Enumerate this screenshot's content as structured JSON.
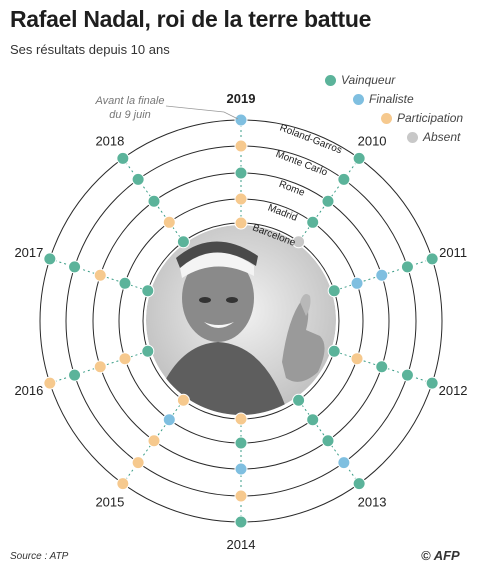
{
  "title": "Rafael Nadal, roi de la terre battue",
  "subtitle": "Ses résultats depuis 10 ans",
  "source": "Source : ATP",
  "logo_text": "© AFP",
  "colors": {
    "Vainqueur": "#5bb39a",
    "Finaliste": "#7fbfe0",
    "Participation": "#f6c98e",
    "Absent": "#c8c8c8",
    "ring": "#2a2a2a",
    "connector": "#3a9d87"
  },
  "legend": {
    "items": [
      {
        "label": "Vainqueur",
        "color": "#5bb39a"
      },
      {
        "label": "Finaliste",
        "color": "#7fbfe0"
      },
      {
        "label": "Participation",
        "color": "#f6c98e"
      },
      {
        "label": "Absent",
        "color": "#c8c8c8"
      }
    ]
  },
  "chart_data": {
    "type": "radial",
    "years": [
      "2019",
      "2010",
      "2011",
      "2012",
      "2013",
      "2014",
      "2015",
      "2016",
      "2017",
      "2018"
    ],
    "tournaments": [
      "Roland-Garros",
      "Monte Carlo",
      "Rome",
      "Madrid",
      "Barcelone"
    ],
    "annotation": "Avant la finale du 9 juin",
    "results": {
      "Roland-Garros": [
        "Finaliste",
        "Vainqueur",
        "Vainqueur",
        "Vainqueur",
        "Vainqueur",
        "Vainqueur",
        "Participation",
        "Participation",
        "Vainqueur",
        "Vainqueur"
      ],
      "Monte Carlo": [
        "Participation",
        "Vainqueur",
        "Vainqueur",
        "Vainqueur",
        "Finaliste",
        "Participation",
        "Participation",
        "Vainqueur",
        "Vainqueur",
        "Vainqueur"
      ],
      "Rome": [
        "Vainqueur",
        "Vainqueur",
        "Finaliste",
        "Vainqueur",
        "Vainqueur",
        "Finaliste",
        "Participation",
        "Participation",
        "Participation",
        "Vainqueur"
      ],
      "Madrid": [
        "Participation",
        "Vainqueur",
        "Finaliste",
        "Participation",
        "Vainqueur",
        "Vainqueur",
        "Finaliste",
        "Participation",
        "Vainqueur",
        "Participation"
      ],
      "Barcelone": [
        "Participation",
        "Absent",
        "Vainqueur",
        "Vainqueur",
        "Vainqueur",
        "Participation",
        "Participation",
        "Vainqueur",
        "Vainqueur",
        "Vainqueur"
      ]
    }
  }
}
